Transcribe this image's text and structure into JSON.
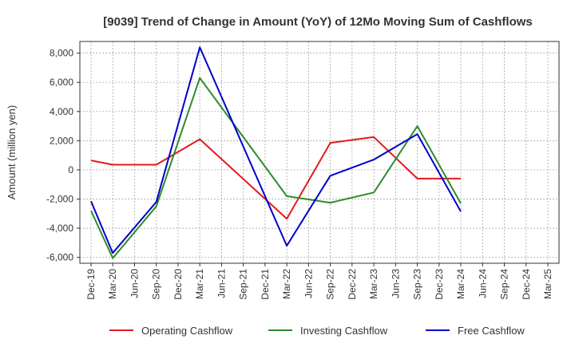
{
  "chart_data": {
    "type": "line",
    "title": "[9039]  Trend of Change in Amount (YoY) of 12Mo Moving Sum of Cashflows",
    "ylabel": "Amount (million yen)",
    "xlabel": "",
    "ylim": [
      -6400,
      8800
    ],
    "yticks": [
      -6000,
      -4000,
      -2000,
      0,
      2000,
      4000,
      6000,
      8000
    ],
    "ytick_labels": [
      "-6,000",
      "-4,000",
      "-2,000",
      "0",
      "2,000",
      "4,000",
      "6,000",
      "8,000"
    ],
    "categories": [
      "Dec-19",
      "Mar-20",
      "Jun-20",
      "Sep-20",
      "Dec-20",
      "Mar-21",
      "Jun-21",
      "Sep-21",
      "Dec-21",
      "Mar-22",
      "Jun-22",
      "Sep-22",
      "Dec-22",
      "Mar-23",
      "Jun-23",
      "Sep-23",
      "Dec-23",
      "Mar-24",
      "Jun-24",
      "Sep-24",
      "Dec-24",
      "Mar-25"
    ],
    "grid": true,
    "legend_position": "bottom",
    "series": [
      {
        "name": "Operating Cashflow",
        "color": "#e31a1c",
        "values": [
          650,
          350,
          350,
          350,
          null,
          2100,
          null,
          null,
          null,
          -3350,
          null,
          1850,
          null,
          2250,
          null,
          -600,
          null,
          -600,
          null,
          null,
          null,
          null
        ]
      },
      {
        "name": "Investing Cashflow",
        "color": "#2e8b2e",
        "values": [
          -2800,
          -6050,
          null,
          -2500,
          null,
          6300,
          null,
          null,
          null,
          -1800,
          null,
          -2250,
          null,
          -1550,
          null,
          3000,
          null,
          -2300,
          null,
          null,
          null,
          null
        ]
      },
      {
        "name": "Free Cashflow",
        "color": "#0000cc",
        "values": [
          -2150,
          -5700,
          null,
          -2200,
          null,
          8400,
          null,
          null,
          null,
          -5200,
          null,
          -400,
          null,
          700,
          null,
          2450,
          null,
          -2850,
          null,
          null,
          null,
          null
        ]
      }
    ]
  }
}
